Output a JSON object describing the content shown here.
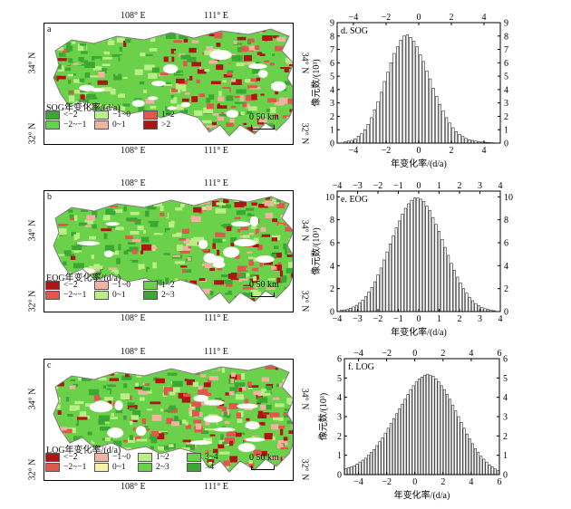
{
  "colors": {
    "green_dark": "#3aa832",
    "green_mid": "#6cd14a",
    "green_light": "#b9ef86",
    "red_dark": "#b01515",
    "red_mid": "#e0574d",
    "red_light": "#f2b2a2",
    "yellow_light": "#f4f4a8",
    "boundary": "#7f7f7f"
  },
  "maps": [
    {
      "letter": "a",
      "top_lon": [
        "108° E",
        "111° E"
      ],
      "bottom_lon": [
        "108° E",
        "111° E"
      ],
      "lat_left": [
        "34° N",
        "32° N"
      ],
      "lat_right": [
        "34° N",
        "32° N"
      ],
      "legend_title": "SOG年变化率/(d/a)",
      "legend": [
        "<−2",
        "−1~0",
        "1~2",
        "−2~−1",
        "0~1",
        ">2"
      ],
      "scale": "0  50 km"
    },
    {
      "letter": "b",
      "top_lon": [
        "108° E",
        "111° E"
      ],
      "bottom_lon": [
        "108° E",
        "111° E"
      ],
      "lat_left": [
        "34° N",
        "32° N"
      ],
      "lat_right": [
        "34° N",
        "32° N"
      ],
      "legend_title": "EOG年变化率/(d/a)",
      "legend": [
        "<−2",
        "−1~0",
        "1~2",
        "−2~−1",
        "0~1",
        "2~3"
      ],
      "scale": "0  50 km"
    },
    {
      "letter": "c",
      "top_lon": [
        "108° E",
        "111° E"
      ],
      "bottom_lon": [
        "108° E",
        "111° E"
      ],
      "lat_left": [
        "34° N",
        "32° N"
      ],
      "lat_right": [
        "34° N",
        "32° N"
      ],
      "legend_title": "LOG年变化率/(d/a)",
      "legend": [
        "<−2",
        "−1~0",
        "1~2",
        "3~4",
        "−2~−1",
        "0~1",
        "2~3",
        ">4"
      ],
      "scale": "0  50 km"
    }
  ],
  "chart_data": [
    {
      "type": "bar",
      "title": "d. SOG",
      "xlabel": "年变化率/(d/a)",
      "ylabel": "像元数/(10³)",
      "xlim": [
        -5,
        5
      ],
      "ylim": [
        0,
        9
      ],
      "xticks": [
        -4,
        -2,
        0,
        2,
        4
      ],
      "yticks": [
        0,
        1,
        2,
        3,
        4,
        5,
        6,
        7,
        8,
        9
      ],
      "x": [
        -4.5,
        -4.3,
        -4.1,
        -3.9,
        -3.7,
        -3.5,
        -3.3,
        -3.1,
        -2.9,
        -2.7,
        -2.5,
        -2.3,
        -2.1,
        -1.9,
        -1.7,
        -1.5,
        -1.3,
        -1.1,
        -0.9,
        -0.7,
        -0.5,
        -0.3,
        -0.1,
        0.1,
        0.3,
        0.5,
        0.7,
        0.9,
        1.1,
        1.3,
        1.5,
        1.7,
        1.9,
        2.1,
        2.3,
        2.5,
        2.7,
        2.9,
        3.1,
        3.3,
        3.5,
        3.7,
        3.9,
        4.1,
        4.3,
        4.5
      ],
      "values": [
        0.1,
        0.15,
        0.2,
        0.3,
        0.5,
        0.7,
        1.0,
        1.4,
        1.9,
        2.5,
        3.1,
        3.8,
        4.6,
        5.3,
        6.0,
        6.7,
        7.2,
        7.7,
        8.0,
        8.1,
        7.9,
        7.6,
        7.2,
        6.6,
        6.1,
        5.4,
        4.8,
        4.1,
        3.5,
        2.9,
        2.4,
        1.9,
        1.5,
        1.15,
        0.85,
        0.65,
        0.5,
        0.35,
        0.25,
        0.2,
        0.15,
        0.1,
        0.08,
        0.06,
        0.04,
        0.03
      ]
    },
    {
      "type": "bar",
      "title": "e. EOG",
      "xlabel": "年变化率/(d/a)",
      "ylabel": "像元数/(10³)",
      "xlim": [
        -4,
        4
      ],
      "ylim": [
        0,
        10.5
      ],
      "xticks": [
        -4,
        -3,
        -2,
        -1,
        0,
        1,
        2,
        3,
        4
      ],
      "yticks": [
        0,
        2,
        4,
        6,
        8,
        10
      ],
      "x": [
        -3.8,
        -3.65,
        -3.5,
        -3.35,
        -3.2,
        -3.05,
        -2.9,
        -2.75,
        -2.6,
        -2.45,
        -2.3,
        -2.15,
        -2.0,
        -1.85,
        -1.7,
        -1.55,
        -1.4,
        -1.25,
        -1.1,
        -0.95,
        -0.8,
        -0.65,
        -0.5,
        -0.35,
        -0.2,
        -0.05,
        0.1,
        0.25,
        0.4,
        0.55,
        0.7,
        0.85,
        1.0,
        1.15,
        1.3,
        1.45,
        1.6,
        1.75,
        1.9,
        2.05,
        2.2,
        2.35,
        2.5,
        2.65,
        2.8,
        2.95,
        3.1,
        3.25,
        3.4,
        3.55,
        3.7
      ],
      "values": [
        0.1,
        0.15,
        0.2,
        0.3,
        0.4,
        0.55,
        0.75,
        1.0,
        1.3,
        1.7,
        2.1,
        2.6,
        3.2,
        3.8,
        4.5,
        5.2,
        5.9,
        6.6,
        7.3,
        7.9,
        8.5,
        9.0,
        9.4,
        9.7,
        9.9,
        9.9,
        9.8,
        9.6,
        9.2,
        8.8,
        8.2,
        7.6,
        7.0,
        6.3,
        5.6,
        4.9,
        4.2,
        3.6,
        3.0,
        2.5,
        2.0,
        1.6,
        1.25,
        0.95,
        0.7,
        0.5,
        0.35,
        0.25,
        0.18,
        0.12,
        0.08
      ]
    },
    {
      "type": "bar",
      "title": "f. LOG",
      "xlabel": "年变化率/(d/a)",
      "ylabel": "像元数/(10³)",
      "xlim": [
        -5,
        6
      ],
      "ylim": [
        0,
        6
      ],
      "xticks": [
        -4,
        -2,
        0,
        2,
        4,
        6
      ],
      "yticks": [
        0,
        1,
        2,
        3,
        4,
        5,
        6
      ],
      "x": [
        -4.9,
        -4.7,
        -4.5,
        -4.3,
        -4.1,
        -3.9,
        -3.7,
        -3.5,
        -3.3,
        -3.1,
        -2.9,
        -2.7,
        -2.5,
        -2.3,
        -2.1,
        -1.9,
        -1.7,
        -1.5,
        -1.3,
        -1.1,
        -0.9,
        -0.7,
        -0.5,
        -0.3,
        -0.1,
        0.1,
        0.3,
        0.5,
        0.7,
        0.9,
        1.1,
        1.3,
        1.5,
        1.7,
        1.9,
        2.1,
        2.3,
        2.5,
        2.7,
        2.9,
        3.1,
        3.3,
        3.5,
        3.7,
        3.9,
        4.1,
        4.3,
        4.5,
        4.7,
        4.9,
        5.1,
        5.3,
        5.5,
        5.7,
        5.9
      ],
      "values": [
        0.3,
        0.35,
        0.4,
        0.45,
        0.55,
        0.65,
        0.75,
        0.85,
        1.0,
        1.15,
        1.3,
        1.5,
        1.7,
        1.9,
        2.15,
        2.4,
        2.65,
        2.9,
        3.15,
        3.4,
        3.65,
        3.9,
        4.15,
        4.4,
        4.6,
        4.8,
        4.95,
        5.05,
        5.15,
        5.2,
        5.15,
        5.1,
        4.95,
        4.8,
        4.6,
        4.4,
        4.15,
        3.9,
        3.6,
        3.3,
        3.0,
        2.7,
        2.4,
        2.1,
        1.85,
        1.6,
        1.35,
        1.15,
        0.95,
        0.8,
        0.65,
        0.5,
        0.4,
        0.3,
        0.2
      ]
    }
  ]
}
